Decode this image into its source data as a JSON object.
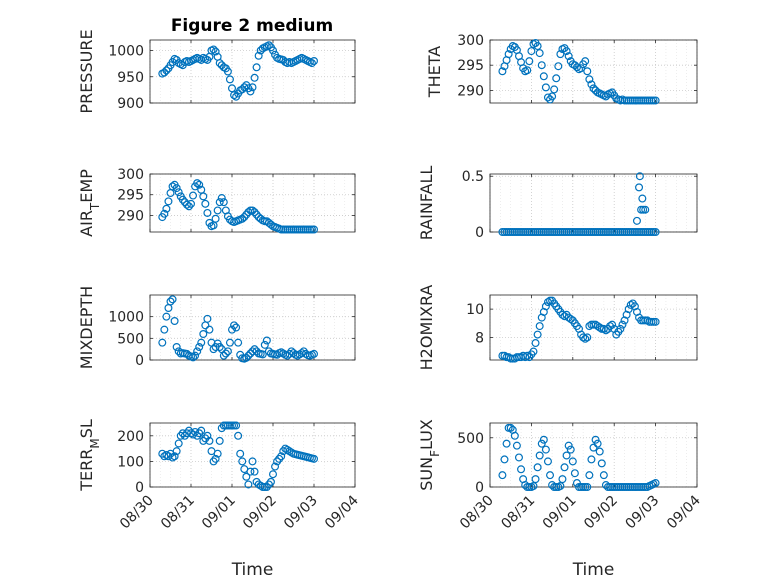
{
  "figure": {
    "title": "Figure 2 medium",
    "marker_color": "#0072BD",
    "grid": "dotted"
  },
  "chart_data": [
    {
      "type": "scatter",
      "title": "Figure 2 medium",
      "ylabel": "PRESSURE",
      "ylim": [
        900,
        1020
      ],
      "yticks": [
        900,
        950,
        1000
      ],
      "xlim": [
        0,
        5
      ],
      "xticks": [
        "08/30",
        "08/31",
        "09/01",
        "09/02",
        "09/03",
        "09/04"
      ],
      "x": [
        0.3,
        0.35,
        0.4,
        0.45,
        0.5,
        0.55,
        0.6,
        0.65,
        0.7,
        0.75,
        0.8,
        0.85,
        0.9,
        0.95,
        1.0,
        1.05,
        1.1,
        1.15,
        1.2,
        1.25,
        1.3,
        1.35,
        1.4,
        1.45,
        1.5,
        1.55,
        1.6,
        1.65,
        1.7,
        1.75,
        1.8,
        1.85,
        1.9,
        1.95,
        2.0,
        2.05,
        2.1,
        2.15,
        2.2,
        2.25,
        2.3,
        2.35,
        2.4,
        2.45,
        2.5,
        2.55,
        2.6,
        2.65,
        2.7,
        2.75,
        2.8,
        2.85,
        2.9,
        2.95,
        3.0,
        3.05,
        3.1,
        3.15,
        3.2,
        3.25,
        3.3,
        3.35,
        3.4,
        3.45,
        3.5,
        3.55,
        3.6,
        3.65,
        3.7,
        3.75,
        3.8,
        3.85,
        3.9,
        3.95,
        4.0
      ],
      "y": [
        956,
        958,
        962,
        966,
        972,
        978,
        984,
        982,
        976,
        974,
        972,
        978,
        980,
        978,
        980,
        982,
        984,
        986,
        984,
        982,
        986,
        984,
        982,
        988,
        1000,
        1002,
        998,
        988,
        976,
        972,
        968,
        966,
        960,
        945,
        928,
        915,
        912,
        918,
        924,
        926,
        930,
        934,
        928,
        922,
        930,
        948,
        968,
        990,
        1000,
        1004,
        1006,
        1008,
        1010,
        1006,
        1000,
        992,
        986,
        984,
        983,
        982,
        978,
        976,
        978,
        976,
        978,
        980,
        982,
        984,
        986,
        984,
        982,
        980,
        978,
        976,
        980
      ],
      "xlabel": ""
    },
    {
      "type": "scatter",
      "ylabel": "THETA",
      "ylim": [
        287.5,
        300
      ],
      "yticks": [
        290,
        295,
        300
      ],
      "xlim": [
        0,
        5
      ],
      "xticks": [
        "08/30",
        "08/31",
        "09/01",
        "09/02",
        "09/03",
        "09/04"
      ],
      "x": [
        0.3,
        0.35,
        0.4,
        0.45,
        0.5,
        0.55,
        0.6,
        0.65,
        0.7,
        0.75,
        0.8,
        0.85,
        0.9,
        0.95,
        1.0,
        1.05,
        1.1,
        1.15,
        1.2,
        1.25,
        1.3,
        1.35,
        1.4,
        1.45,
        1.5,
        1.55,
        1.6,
        1.65,
        1.7,
        1.75,
        1.8,
        1.85,
        1.9,
        1.95,
        2.0,
        2.05,
        2.1,
        2.15,
        2.2,
        2.25,
        2.3,
        2.35,
        2.4,
        2.45,
        2.5,
        2.55,
        2.6,
        2.65,
        2.7,
        2.75,
        2.8,
        2.85,
        2.9,
        2.95,
        3.0,
        3.05,
        3.1,
        3.15,
        3.2,
        3.25,
        3.3,
        3.35,
        3.4,
        3.45,
        3.5,
        3.55,
        3.6,
        3.65,
        3.7,
        3.75,
        3.8,
        3.85,
        3.9,
        3.95,
        4.0
      ],
      "y": [
        293.8,
        294.8,
        296,
        297.2,
        298.2,
        298.8,
        298.6,
        298,
        296.8,
        295.6,
        294.4,
        293.8,
        294,
        295.8,
        297.8,
        299.2,
        299.4,
        298.8,
        297.4,
        295,
        292.8,
        290.6,
        288.6,
        288.2,
        288.8,
        290.2,
        292.4,
        294.8,
        297.2,
        298.2,
        298.4,
        297.8,
        296.8,
        295.8,
        295.2,
        295,
        294.6,
        294.2,
        294.4,
        295.2,
        295.8,
        293.8,
        292.2,
        291.2,
        290.4,
        290,
        289.6,
        289.4,
        289.2,
        289,
        288.8,
        289.2,
        289.4,
        289.6,
        289,
        288.4,
        288.2,
        288,
        288.2,
        288,
        288,
        288,
        288,
        288,
        288,
        288,
        288,
        288,
        288,
        288,
        288,
        288,
        288,
        288,
        288
      ],
      "xlabel": ""
    },
    {
      "type": "scatter",
      "ylabel": "AIR_T EMP",
      "ylim": [
        286,
        300
      ],
      "yticks": [
        290,
        295,
        300
      ],
      "xlim": [
        0,
        5
      ],
      "xticks": [
        "08/30",
        "08/31",
        "09/01",
        "09/02",
        "09/03",
        "09/04"
      ],
      "x": [
        0.3,
        0.35,
        0.4,
        0.45,
        0.5,
        0.55,
        0.6,
        0.65,
        0.7,
        0.75,
        0.8,
        0.85,
        0.9,
        0.95,
        1.0,
        1.05,
        1.1,
        1.15,
        1.2,
        1.25,
        1.3,
        1.35,
        1.4,
        1.45,
        1.5,
        1.55,
        1.6,
        1.65,
        1.7,
        1.75,
        1.8,
        1.85,
        1.9,
        1.95,
        2.0,
        2.05,
        2.1,
        2.15,
        2.2,
        2.25,
        2.3,
        2.35,
        2.4,
        2.45,
        2.5,
        2.55,
        2.6,
        2.65,
        2.7,
        2.75,
        2.8,
        2.85,
        2.9,
        2.95,
        3.0,
        3.05,
        3.1,
        3.15,
        3.2,
        3.25,
        3.3,
        3.35,
        3.4,
        3.45,
        3.5,
        3.55,
        3.6,
        3.65,
        3.7,
        3.75,
        3.8,
        3.85,
        3.9,
        3.95,
        4.0
      ],
      "y": [
        289.6,
        290.4,
        291.6,
        293.4,
        295.4,
        297,
        297.4,
        296.6,
        295.6,
        294.6,
        293.8,
        293.2,
        292.6,
        292.2,
        292.8,
        294.8,
        297,
        297.8,
        297.4,
        296.2,
        294.6,
        292.8,
        290.6,
        288.2,
        287.4,
        287.6,
        289.2,
        291.2,
        293.2,
        294.2,
        293.2,
        291.2,
        289.8,
        289,
        288.6,
        288.4,
        288.6,
        288.8,
        289,
        289.2,
        289.6,
        290.2,
        290.8,
        291.2,
        291.2,
        290.8,
        290.2,
        289.6,
        289.2,
        288.8,
        288.6,
        288.6,
        288.2,
        287.8,
        287.4,
        287.2,
        287,
        286.8,
        286.6,
        286.6,
        286.6,
        286.6,
        286.6,
        286.6,
        286.6,
        286.6,
        286.6,
        286.6,
        286.6,
        286.6,
        286.6,
        286.6,
        286.6,
        286.6,
        286.6
      ],
      "xlabel": ""
    },
    {
      "type": "scatter",
      "ylabel": "RAINFALL",
      "ylim": [
        0,
        0.52
      ],
      "yticks": [
        0,
        0.5
      ],
      "xlim": [
        0,
        5
      ],
      "xticks": [
        "08/30",
        "08/31",
        "09/01",
        "09/02",
        "09/03",
        "09/04"
      ],
      "x": [
        0.3,
        0.35,
        0.4,
        0.45,
        0.5,
        0.55,
        0.6,
        0.65,
        0.7,
        0.75,
        0.8,
        0.85,
        0.9,
        0.95,
        1.0,
        1.05,
        1.1,
        1.15,
        1.2,
        1.25,
        1.3,
        1.35,
        1.4,
        1.45,
        1.5,
        1.55,
        1.6,
        1.65,
        1.7,
        1.75,
        1.8,
        1.85,
        1.9,
        1.95,
        2.0,
        2.05,
        2.1,
        2.15,
        2.2,
        2.25,
        2.3,
        2.35,
        2.4,
        2.45,
        2.5,
        2.55,
        2.6,
        2.65,
        2.7,
        2.75,
        2.8,
        2.85,
        2.9,
        2.95,
        3.0,
        3.05,
        3.1,
        3.15,
        3.2,
        3.25,
        3.3,
        3.35,
        3.4,
        3.45,
        3.5,
        3.55,
        3.6,
        3.65,
        3.7,
        3.75,
        3.8,
        3.85,
        3.9,
        3.95,
        4.0,
        3.55,
        3.6,
        3.62,
        3.65,
        3.68,
        3.7,
        3.75
      ],
      "y": [
        0,
        0,
        0,
        0,
        0,
        0,
        0,
        0,
        0,
        0,
        0,
        0,
        0,
        0,
        0,
        0,
        0,
        0,
        0,
        0,
        0,
        0,
        0,
        0,
        0,
        0,
        0,
        0,
        0,
        0,
        0,
        0,
        0,
        0,
        0,
        0,
        0,
        0,
        0,
        0,
        0,
        0,
        0,
        0,
        0,
        0,
        0,
        0,
        0,
        0,
        0,
        0,
        0,
        0,
        0,
        0,
        0,
        0,
        0,
        0,
        0,
        0,
        0,
        0,
        0,
        0,
        0,
        0,
        0,
        0,
        0,
        0,
        0,
        0,
        0,
        0.1,
        0.4,
        0.5,
        0.2,
        0.3,
        0.2,
        0.2
      ],
      "xlabel": ""
    },
    {
      "type": "scatter",
      "ylabel": "MIXDEPTH",
      "ylim": [
        0,
        1500
      ],
      "yticks": [
        0,
        500,
        1000
      ],
      "xlim": [
        0,
        5
      ],
      "xticks": [
        "08/30",
        "08/31",
        "09/01",
        "09/02",
        "09/03",
        "09/04"
      ],
      "x": [
        0.3,
        0.35,
        0.4,
        0.45,
        0.5,
        0.55,
        0.6,
        0.65,
        0.7,
        0.75,
        0.8,
        0.85,
        0.9,
        0.95,
        1.0,
        1.05,
        1.1,
        1.15,
        1.2,
        1.25,
        1.3,
        1.35,
        1.4,
        1.45,
        1.5,
        1.55,
        1.6,
        1.65,
        1.7,
        1.75,
        1.8,
        1.85,
        1.9,
        1.95,
        2.0,
        2.05,
        2.1,
        2.15,
        2.2,
        2.25,
        2.3,
        2.35,
        2.4,
        2.45,
        2.5,
        2.55,
        2.6,
        2.65,
        2.7,
        2.75,
        2.8,
        2.85,
        2.9,
        2.95,
        3.0,
        3.05,
        3.1,
        3.15,
        3.2,
        3.25,
        3.3,
        3.35,
        3.4,
        3.45,
        3.5,
        3.55,
        3.6,
        3.65,
        3.7,
        3.75,
        3.8,
        3.85,
        3.9,
        3.95,
        4.0
      ],
      "y": [
        400,
        700,
        1000,
        1200,
        1350,
        1400,
        900,
        300,
        200,
        150,
        160,
        150,
        140,
        100,
        80,
        60,
        100,
        200,
        300,
        400,
        600,
        800,
        950,
        700,
        400,
        250,
        300,
        380,
        300,
        250,
        100,
        150,
        200,
        400,
        700,
        800,
        750,
        400,
        120,
        40,
        30,
        50,
        100,
        150,
        200,
        250,
        200,
        150,
        140,
        130,
        350,
        450,
        200,
        150,
        140,
        130,
        120,
        160,
        180,
        150,
        120,
        100,
        140,
        200,
        160,
        120,
        100,
        130,
        160,
        200,
        140,
        110,
        100,
        120,
        140
      ],
      "xlabel": ""
    },
    {
      "type": "scatter",
      "ylabel": "H2OMIXRA",
      "ylim": [
        6.4,
        11
      ],
      "yticks": [
        8,
        10
      ],
      "xlim": [
        0,
        5
      ],
      "xticks": [
        "08/30",
        "08/31",
        "09/01",
        "09/02",
        "09/03",
        "09/04"
      ],
      "x": [
        0.3,
        0.35,
        0.4,
        0.45,
        0.5,
        0.55,
        0.6,
        0.65,
        0.7,
        0.75,
        0.8,
        0.85,
        0.9,
        0.95,
        1.0,
        1.05,
        1.1,
        1.15,
        1.2,
        1.25,
        1.3,
        1.35,
        1.4,
        1.45,
        1.5,
        1.55,
        1.6,
        1.65,
        1.7,
        1.75,
        1.8,
        1.85,
        1.9,
        1.95,
        2.0,
        2.05,
        2.1,
        2.15,
        2.2,
        2.25,
        2.3,
        2.35,
        2.4,
        2.45,
        2.5,
        2.55,
        2.6,
        2.65,
        2.7,
        2.75,
        2.8,
        2.85,
        2.9,
        2.95,
        3.0,
        3.05,
        3.1,
        3.15,
        3.2,
        3.25,
        3.3,
        3.35,
        3.4,
        3.45,
        3.5,
        3.55,
        3.6,
        3.65,
        3.7,
        3.75,
        3.8,
        3.85,
        3.9,
        3.95,
        4.0
      ],
      "y": [
        6.7,
        6.7,
        6.6,
        6.6,
        6.5,
        6.5,
        6.5,
        6.6,
        6.6,
        6.6,
        6.7,
        6.6,
        6.7,
        6.6,
        6.8,
        7,
        7.6,
        8.2,
        8.8,
        9.4,
        9.8,
        10.2,
        10.5,
        10.6,
        10.6,
        10.4,
        10.2,
        10,
        9.8,
        9.6,
        9.5,
        9.6,
        9.4,
        9.3,
        9.2,
        9,
        8.8,
        8.6,
        8.2,
        8,
        7.9,
        8,
        8.8,
        8.9,
        8.9,
        8.9,
        8.8,
        8.7,
        8.6,
        8.6,
        8.5,
        8.6,
        8.8,
        8.9,
        8.6,
        8.2,
        8.4,
        8.6,
        8.9,
        9.2,
        9.6,
        10,
        10.3,
        10.4,
        10.2,
        9.8,
        9.4,
        9.2,
        9.2,
        9.2,
        9.2,
        9.1,
        9.1,
        9.1,
        9.1
      ],
      "xlabel": ""
    },
    {
      "type": "scatter",
      "ylabel": "TERR_M SL",
      "ylim": [
        0,
        250
      ],
      "yticks": [
        0,
        100,
        200
      ],
      "xlim": [
        0,
        5
      ],
      "xticks": [
        "08/30",
        "08/31",
        "09/01",
        "09/02",
        "09/03",
        "09/04"
      ],
      "x": [
        0.3,
        0.35,
        0.4,
        0.45,
        0.5,
        0.55,
        0.6,
        0.65,
        0.7,
        0.75,
        0.8,
        0.85,
        0.9,
        0.95,
        1.0,
        1.05,
        1.1,
        1.15,
        1.2,
        1.25,
        1.3,
        1.35,
        1.4,
        1.45,
        1.5,
        1.55,
        1.6,
        1.65,
        1.7,
        1.75,
        1.8,
        1.85,
        1.9,
        1.95,
        2.0,
        2.05,
        2.1,
        2.15,
        2.2,
        2.25,
        2.3,
        2.35,
        2.4,
        2.45,
        2.5,
        2.55,
        2.6,
        2.65,
        2.7,
        2.75,
        2.8,
        2.85,
        2.9,
        2.95,
        3.0,
        3.05,
        3.1,
        3.15,
        3.2,
        3.25,
        3.3,
        3.35,
        3.4,
        3.45,
        3.5,
        3.55,
        3.6,
        3.65,
        3.7,
        3.75,
        3.8,
        3.85,
        3.9,
        3.95,
        4.0
      ],
      "y": [
        130,
        120,
        125,
        120,
        130,
        115,
        120,
        140,
        170,
        200,
        210,
        200,
        210,
        220,
        210,
        205,
        215,
        200,
        210,
        220,
        180,
        190,
        200,
        180,
        140,
        100,
        110,
        130,
        180,
        230,
        240,
        240,
        240,
        240,
        240,
        240,
        240,
        200,
        130,
        100,
        70,
        40,
        10,
        60,
        100,
        60,
        20,
        10,
        5,
        0,
        0,
        0,
        10,
        20,
        50,
        80,
        100,
        110,
        120,
        140,
        150,
        145,
        140,
        135,
        130,
        128,
        126,
        124,
        122,
        120,
        118,
        116,
        114,
        112,
        110
      ],
      "xlabel": "Time"
    },
    {
      "type": "scatter",
      "ylabel": "SUN_F LUX",
      "ylim": [
        0,
        650
      ],
      "yticks": [
        0,
        500
      ],
      "xlim": [
        0,
        5
      ],
      "xticks": [
        "08/30",
        "08/31",
        "09/01",
        "09/02",
        "09/03",
        "09/04"
      ],
      "x": [
        0.3,
        0.35,
        0.4,
        0.45,
        0.5,
        0.55,
        0.6,
        0.65,
        0.7,
        0.75,
        0.8,
        0.85,
        0.9,
        0.95,
        1.0,
        1.05,
        1.1,
        1.15,
        1.2,
        1.25,
        1.3,
        1.35,
        1.4,
        1.45,
        1.5,
        1.55,
        1.6,
        1.65,
        1.7,
        1.75,
        1.8,
        1.85,
        1.9,
        1.95,
        2.0,
        2.05,
        2.1,
        2.15,
        2.2,
        2.25,
        2.3,
        2.35,
        2.4,
        2.45,
        2.5,
        2.55,
        2.6,
        2.65,
        2.7,
        2.75,
        2.8,
        2.85,
        2.9,
        2.95,
        3.0,
        3.05,
        3.1,
        3.15,
        3.2,
        3.25,
        3.3,
        3.35,
        3.4,
        3.45,
        3.5,
        3.55,
        3.6,
        3.65,
        3.7,
        3.75,
        3.8,
        3.85,
        3.9,
        3.95,
        4.0
      ],
      "y": [
        120,
        280,
        440,
        600,
        600,
        580,
        520,
        420,
        300,
        180,
        80,
        20,
        0,
        0,
        0,
        10,
        80,
        200,
        320,
        440,
        480,
        380,
        260,
        120,
        20,
        0,
        0,
        0,
        10,
        80,
        200,
        320,
        420,
        380,
        260,
        140,
        40,
        0,
        0,
        0,
        0,
        0,
        120,
        280,
        400,
        480,
        440,
        360,
        240,
        120,
        20,
        0,
        0,
        0,
        0,
        0,
        0,
        0,
        0,
        0,
        0,
        0,
        0,
        0,
        0,
        0,
        0,
        0,
        0,
        0,
        0,
        10,
        20,
        30,
        40
      ],
      "xlabel": "Time"
    }
  ]
}
